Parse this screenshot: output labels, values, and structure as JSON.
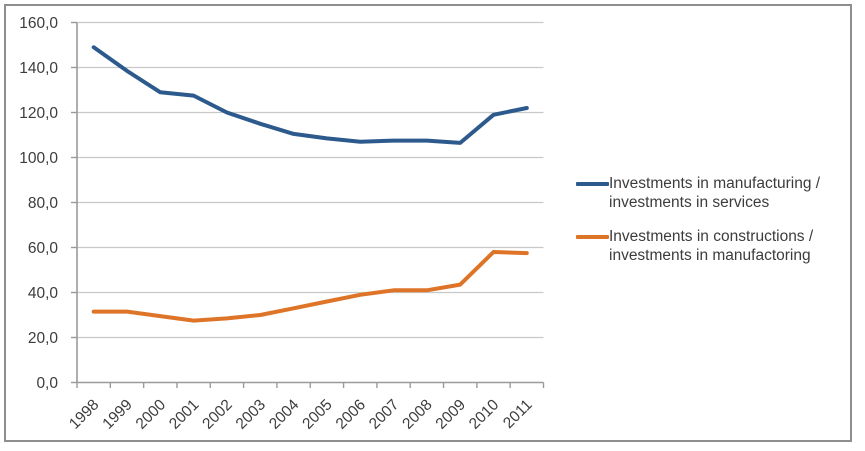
{
  "window": {
    "background": "#ffffff",
    "frame_border_color": "#8e8e8e"
  },
  "colors": {
    "gridline": "#c8c8c8",
    "axis": "#9a9a9a",
    "tick": "#9a9a9a",
    "label_text": "#3c3c3c"
  },
  "chart_data": {
    "type": "line",
    "title": "",
    "xlabel": "",
    "ylabel": "",
    "categories": [
      "1998",
      "1999",
      "2000",
      "2001",
      "2002",
      "2003",
      "2004",
      "2005",
      "2006",
      "2007",
      "2008",
      "2009",
      "2010",
      "2011"
    ],
    "series": [
      {
        "name": "Investments in manufacturing / investments in services",
        "color": "#2d5a8c",
        "values": [
          149,
          138.5,
          129,
          127.5,
          120,
          115,
          110.5,
          108.5,
          107,
          107.5,
          107.5,
          106.5,
          119,
          122
        ]
      },
      {
        "name": "Investments in constructions / investments in manufactoring",
        "color": "#dd7428",
        "values": [
          31.5,
          31.5,
          29.5,
          27.5,
          28.5,
          30,
          33,
          36,
          39,
          41,
          41,
          43.5,
          58,
          57.5
        ]
      }
    ],
    "ylim": [
      0,
      160
    ],
    "y_tick_step": 20,
    "y_tick_labels": [
      "0,0",
      "20,0",
      "40,0",
      "60,0",
      "80,0",
      "100,0",
      "120,0",
      "140,0",
      "160,0"
    ],
    "grid": true,
    "legend_position": "right",
    "x_label_rotation_deg": -45
  }
}
